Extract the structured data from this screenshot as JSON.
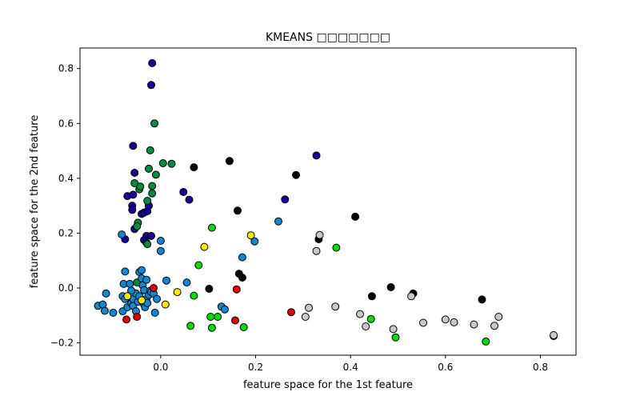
{
  "chart_data": {
    "type": "scatter",
    "title": "KMEANS □□□□□□□",
    "xlabel": "feature space for the 1st feature",
    "ylabel": "feature space for the 2nd feature",
    "xlim": [
      -0.17,
      0.875
    ],
    "ylim": [
      -0.245,
      0.875
    ],
    "xticks": [
      0.0,
      0.2,
      0.4,
      0.6,
      0.8
    ],
    "xtick_labels": [
      "0.0",
      "0.2",
      "0.4",
      "0.6",
      "0.8"
    ],
    "yticks": [
      -0.2,
      0.0,
      0.2,
      0.4,
      0.6,
      0.8
    ],
    "ytick_labels": [
      "−0.2",
      "0.0",
      "0.2",
      "0.4",
      "0.6",
      "0.8"
    ],
    "grid": false,
    "series": [
      {
        "color": "#1a0099",
        "points": [
          [
            -0.018,
            0.82
          ],
          [
            -0.02,
            0.74
          ],
          [
            -0.058,
            0.518
          ],
          [
            -0.055,
            0.42
          ],
          [
            -0.07,
            0.335
          ],
          [
            -0.058,
            0.34
          ],
          [
            -0.06,
            0.3
          ],
          [
            -0.06,
            0.285
          ],
          [
            -0.04,
            0.27
          ],
          [
            -0.035,
            0.275
          ],
          [
            -0.028,
            0.28
          ],
          [
            -0.025,
            0.3
          ],
          [
            -0.03,
            0.19
          ],
          [
            -0.02,
            0.19
          ],
          [
            -0.035,
            0.175
          ],
          [
            -0.03,
            0.165
          ],
          [
            -0.055,
            0.215
          ],
          [
            -0.075,
            0.178
          ],
          [
            0.048,
            0.35
          ],
          [
            0.06,
            0.322
          ],
          [
            0.262,
            0.323
          ],
          [
            0.328,
            0.483
          ]
        ]
      },
      {
        "color": "#008c3c",
        "points": [
          [
            -0.013,
            0.6
          ],
          [
            -0.022,
            0.502
          ],
          [
            -0.025,
            0.435
          ],
          [
            -0.01,
            0.413
          ],
          [
            0.005,
            0.455
          ],
          [
            0.023,
            0.453
          ],
          [
            -0.055,
            0.382
          ],
          [
            -0.045,
            0.36
          ],
          [
            -0.043,
            0.37
          ],
          [
            -0.018,
            0.372
          ],
          [
            -0.018,
            0.345
          ],
          [
            -0.028,
            0.318
          ],
          [
            -0.048,
            0.238
          ],
          [
            -0.05,
            0.225
          ],
          [
            -0.028,
            0.16
          ],
          [
            -0.05,
            0.02
          ]
        ]
      },
      {
        "color": "#000000",
        "points": [
          [
            0.07,
            0.44
          ],
          [
            0.145,
            0.463
          ],
          [
            0.285,
            0.412
          ],
          [
            0.162,
            0.282
          ],
          [
            0.41,
            0.26
          ],
          [
            0.333,
            0.178
          ],
          [
            0.165,
            0.052
          ],
          [
            0.172,
            0.038
          ],
          [
            0.102,
            -0.003
          ],
          [
            0.445,
            -0.03
          ],
          [
            0.485,
            0.003
          ],
          [
            0.532,
            -0.02
          ],
          [
            0.677,
            -0.042
          ]
        ]
      },
      {
        "color": "#0f88d3",
        "points": [
          [
            -0.082,
            0.195
          ],
          [
            -0.075,
            0.06
          ],
          [
            0.0,
            0.172
          ],
          [
            0.0,
            0.135
          ],
          [
            0.198,
            0.17
          ],
          [
            0.248,
            0.243
          ],
          [
            0.172,
            0.112
          ],
          [
            0.012,
            0.027
          ],
          [
            0.055,
            0.02
          ],
          [
            0.128,
            -0.068
          ],
          [
            0.135,
            -0.078
          ],
          [
            -0.132,
            -0.065
          ],
          [
            -0.122,
            -0.06
          ],
          [
            -0.115,
            -0.02
          ],
          [
            -0.118,
            -0.083
          ],
          [
            -0.1,
            -0.09
          ],
          [
            -0.08,
            -0.085
          ],
          [
            -0.08,
            -0.03
          ],
          [
            -0.075,
            -0.04
          ],
          [
            -0.078,
            0.015
          ],
          [
            -0.065,
            0.015
          ],
          [
            -0.07,
            -0.07
          ],
          [
            -0.062,
            -0.055
          ],
          [
            -0.058,
            -0.065
          ],
          [
            -0.058,
            -0.04
          ],
          [
            -0.052,
            -0.02
          ],
          [
            -0.048,
            -0.05
          ],
          [
            -0.045,
            -0.03
          ],
          [
            -0.045,
            0.058
          ],
          [
            -0.04,
            0.065
          ],
          [
            -0.04,
            0.035
          ],
          [
            -0.038,
            0.01
          ],
          [
            -0.035,
            -0.008
          ],
          [
            -0.035,
            -0.06
          ],
          [
            -0.033,
            -0.07
          ],
          [
            -0.03,
            -0.04
          ],
          [
            -0.028,
            -0.055
          ],
          [
            -0.025,
            -0.025
          ],
          [
            -0.022,
            -0.01
          ],
          [
            -0.02,
            -0.015
          ],
          [
            -0.015,
            -0.02
          ],
          [
            -0.012,
            -0.09
          ],
          [
            -0.008,
            -0.04
          ],
          [
            -0.052,
            -0.085
          ],
          [
            -0.062,
            -0.01
          ],
          [
            -0.03,
            0.03
          ]
        ]
      },
      {
        "color": "#e00000",
        "points": [
          [
            -0.015,
            0.0
          ],
          [
            -0.072,
            -0.115
          ],
          [
            -0.05,
            -0.105
          ],
          [
            0.16,
            -0.005
          ],
          [
            0.157,
            -0.118
          ],
          [
            0.275,
            -0.088
          ]
        ]
      },
      {
        "color": "#ffe600",
        "points": [
          [
            0.092,
            0.15
          ],
          [
            0.19,
            0.192
          ],
          [
            0.035,
            -0.015
          ],
          [
            0.01,
            -0.06
          ],
          [
            -0.04,
            -0.045
          ],
          [
            -0.07,
            -0.03
          ]
        ]
      },
      {
        "color": "#00dd00",
        "points": [
          [
            0.108,
            0.22
          ],
          [
            0.08,
            0.083
          ],
          [
            0.07,
            -0.028
          ],
          [
            0.063,
            -0.138
          ],
          [
            0.105,
            -0.105
          ],
          [
            0.12,
            -0.105
          ],
          [
            0.108,
            -0.145
          ],
          [
            0.175,
            -0.143
          ],
          [
            0.37,
            0.147
          ],
          [
            0.443,
            -0.113
          ],
          [
            0.495,
            -0.18
          ],
          [
            0.685,
            -0.195
          ]
        ]
      },
      {
        "color": "#c8c8c8",
        "points": [
          [
            0.335,
            0.193
          ],
          [
            0.328,
            0.135
          ],
          [
            0.312,
            -0.072
          ],
          [
            0.305,
            -0.105
          ],
          [
            0.368,
            -0.068
          ],
          [
            0.42,
            -0.095
          ],
          [
            0.432,
            -0.14
          ],
          [
            0.49,
            -0.15
          ],
          [
            0.528,
            -0.03
          ],
          [
            0.553,
            -0.127
          ],
          [
            0.6,
            -0.115
          ],
          [
            0.618,
            -0.125
          ],
          [
            0.66,
            -0.133
          ],
          [
            0.703,
            -0.138
          ],
          [
            0.712,
            -0.105
          ],
          [
            0.828,
            -0.175
          ],
          [
            0.828,
            -0.172
          ]
        ]
      }
    ]
  }
}
